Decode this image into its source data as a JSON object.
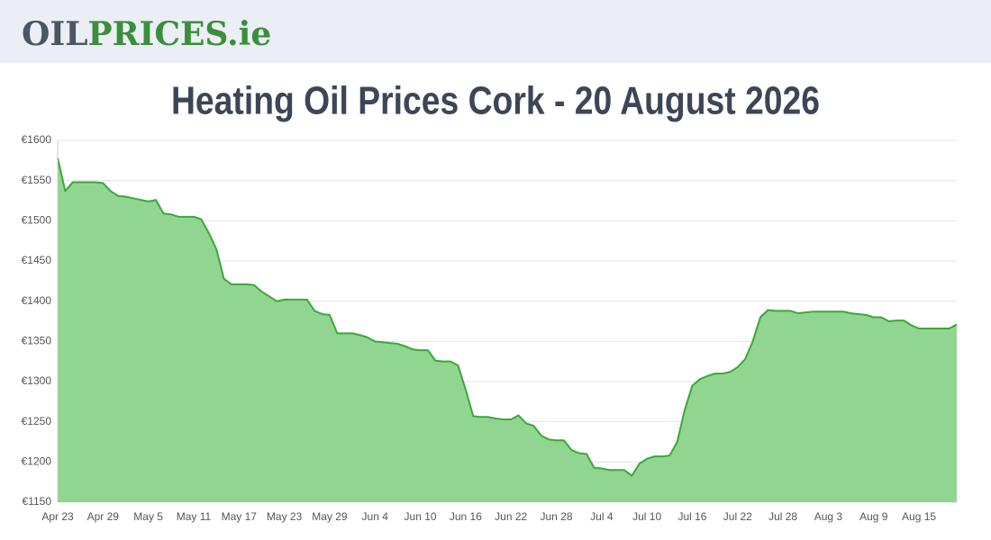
{
  "header": {
    "logo_dark": "OIL",
    "logo_green": "PRICES.ie"
  },
  "chart_data": {
    "type": "area",
    "title": "Heating Oil Prices Cork - 20 August 2026",
    "categories": [
      "Apr 23",
      null,
      null,
      null,
      null,
      null,
      "Apr 29",
      null,
      null,
      null,
      null,
      null,
      "May 5",
      null,
      null,
      null,
      null,
      null,
      "May 11",
      null,
      null,
      null,
      null,
      null,
      "May 17",
      null,
      null,
      null,
      null,
      null,
      "May 23",
      null,
      null,
      null,
      null,
      null,
      "May 29",
      null,
      null,
      null,
      null,
      null,
      "Jun 4",
      null,
      null,
      null,
      null,
      null,
      "Jun 10",
      null,
      null,
      null,
      null,
      null,
      "Jun 16",
      null,
      null,
      null,
      null,
      null,
      "Jun 22",
      null,
      null,
      null,
      null,
      null,
      "Jun 28",
      null,
      null,
      null,
      null,
      null,
      "Jul 4",
      null,
      null,
      null,
      null,
      null,
      "Jul 10",
      null,
      null,
      null,
      null,
      null,
      "Jul 16",
      null,
      null,
      null,
      null,
      null,
      "Jul 22",
      null,
      null,
      null,
      null,
      null,
      "Jul 28",
      null,
      null,
      null,
      null,
      null,
      "Aug 3",
      null,
      null,
      null,
      null,
      null,
      "Aug 9",
      null,
      null,
      null,
      null,
      null,
      "Aug 15",
      null,
      null,
      null,
      null,
      null
    ],
    "values": [
      1578,
      1537,
      1548,
      1548,
      1548,
      1548,
      1547,
      1537,
      1531,
      1530,
      1528,
      1526,
      1524,
      1526,
      1509,
      1508,
      1505,
      1505,
      1505,
      1502,
      1485,
      1465,
      1428,
      1421,
      1421,
      1421,
      1420,
      1412,
      1406,
      1400,
      1402,
      1402,
      1402,
      1402,
      1388,
      1384,
      1383,
      1360,
      1360,
      1360,
      1358,
      1355,
      1350,
      1349,
      1348,
      1347,
      1344,
      1340,
      1339,
      1339,
      1326,
      1325,
      1325,
      1320,
      1290,
      1257,
      1256,
      1256,
      1254,
      1253,
      1253,
      1258,
      1248,
      1245,
      1233,
      1228,
      1227,
      1227,
      1215,
      1211,
      1210,
      1193,
      1192,
      1190,
      1190,
      1190,
      1183,
      1198,
      1204,
      1207,
      1207,
      1208,
      1225,
      1265,
      1295,
      1303,
      1307,
      1310,
      1310,
      1312,
      1318,
      1328,
      1350,
      1380,
      1389,
      1388,
      1388,
      1388,
      1385,
      1386,
      1387,
      1387,
      1387,
      1387,
      1387,
      1385,
      1384,
      1383,
      1380,
      1380,
      1375,
      1376,
      1376,
      1370,
      1366,
      1366,
      1366,
      1366,
      1366,
      1371
    ],
    "color": "#3aa83a",
    "area_color": "#90d690",
    "ylim": [
      1150,
      1600
    ],
    "yticks": [
      {
        "value": 1150,
        "label": "€1150"
      },
      {
        "value": 1200,
        "label": "€1200"
      },
      {
        "value": 1250,
        "label": "€1250"
      },
      {
        "value": 1300,
        "label": "€1300"
      },
      {
        "value": 1350,
        "label": "€1350"
      },
      {
        "value": 1400,
        "label": "€1400"
      },
      {
        "value": 1450,
        "label": "€1450"
      },
      {
        "value": 1500,
        "label": "€1500"
      },
      {
        "value": 1550,
        "label": "€1550"
      },
      {
        "value": 1600,
        "label": "€1600"
      }
    ],
    "grid": true
  }
}
